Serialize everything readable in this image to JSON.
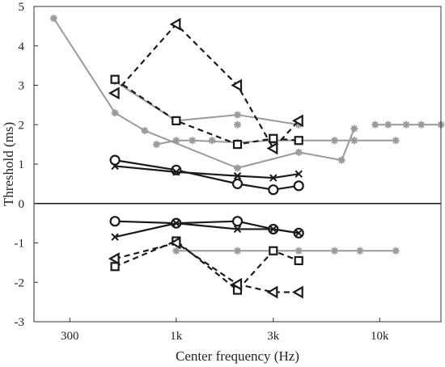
{
  "chart_data": {
    "type": "line",
    "xlabel": "Center frequency (Hz)",
    "ylabel": "Threshold (ms)",
    "x_scale": "log",
    "xlim": [
      200,
      20000
    ],
    "ylim": [
      -3,
      5
    ],
    "x_ticks": [
      {
        "value": 300,
        "label": "300"
      },
      {
        "value": 1000,
        "label": "1k"
      },
      {
        "value": 3000,
        "label": "3k"
      },
      {
        "value": 10000,
        "label": "10k"
      }
    ],
    "y_ticks": [
      -3,
      -2,
      -1,
      0,
      1,
      2,
      3,
      4,
      5
    ],
    "zero_line": true,
    "grid": false,
    "colors": {
      "black": "#1a1a1a",
      "gray": "#9a9a9a"
    },
    "series": [
      {
        "color": "#9a9a9a",
        "style": "solid",
        "marker": "star",
        "points": [
          [
            250,
            4.7
          ],
          [
            500,
            2.3
          ],
          [
            700,
            1.85
          ],
          [
            2000,
            0.9
          ],
          [
            4000,
            1.3
          ],
          [
            6500,
            1.1
          ],
          [
            7500,
            1.9
          ]
        ]
      },
      {
        "color": "#9a9a9a",
        "style": "solid",
        "marker": "star",
        "points": [
          [
            500,
            3.1
          ],
          [
            1000,
            2.1
          ],
          [
            2000,
            2.25
          ],
          [
            4000,
            2.0
          ]
        ]
      },
      {
        "color": "#9a9a9a",
        "style": "solid",
        "marker": "star",
        "points": [
          [
            800,
            1.5
          ],
          [
            1000,
            1.6
          ],
          [
            1200,
            1.6
          ],
          [
            2000,
            1.55
          ],
          [
            3000,
            1.6
          ],
          [
            4000,
            1.6
          ],
          [
            6000,
            1.6
          ],
          [
            7500,
            1.6
          ],
          [
            12000,
            1.6
          ]
        ]
      },
      {
        "color": "#9a9a9a",
        "style": "none",
        "marker": "star",
        "points": [
          [
            1500,
            1.6
          ],
          [
            2000,
            2.0
          ]
        ]
      },
      {
        "color": "#9a9a9a",
        "style": "solid",
        "marker": "star",
        "points": [
          [
            9500,
            2.0
          ],
          [
            11000,
            2.0
          ],
          [
            13500,
            2.0
          ],
          [
            16000,
            2.0
          ],
          [
            20000,
            2.0
          ]
        ]
      },
      {
        "color": "#9a9a9a",
        "style": "solid",
        "marker": "star",
        "points": [
          [
            1000,
            -1.2
          ],
          [
            2000,
            -1.2
          ],
          [
            3000,
            -1.2
          ],
          [
            4000,
            -1.2
          ],
          [
            6000,
            -1.2
          ],
          [
            8000,
            -1.2
          ],
          [
            12000,
            -1.2
          ]
        ]
      },
      {
        "color": "#1a1a1a",
        "style": "dashed",
        "marker": "square",
        "points": [
          [
            500,
            3.15
          ],
          [
            1000,
            2.1
          ],
          [
            2000,
            1.5
          ],
          [
            3000,
            1.65
          ],
          [
            4000,
            1.6
          ]
        ]
      },
      {
        "color": "#1a1a1a",
        "style": "dashed",
        "marker": "triangle-left",
        "points": [
          [
            500,
            2.8
          ],
          [
            1000,
            4.55
          ],
          [
            2000,
            3.0
          ],
          [
            3000,
            1.4
          ],
          [
            4000,
            2.1
          ]
        ]
      },
      {
        "color": "#1a1a1a",
        "style": "solid",
        "marker": "circle",
        "points": [
          [
            500,
            1.1
          ],
          [
            1000,
            0.85
          ],
          [
            2000,
            0.5
          ],
          [
            3000,
            0.35
          ],
          [
            4000,
            0.45
          ]
        ]
      },
      {
        "color": "#1a1a1a",
        "style": "solid",
        "marker": "x",
        "points": [
          [
            500,
            0.95
          ],
          [
            1000,
            0.8
          ],
          [
            2000,
            0.7
          ],
          [
            3000,
            0.65
          ],
          [
            4000,
            0.75
          ]
        ]
      },
      {
        "color": "#1a1a1a",
        "style": "solid",
        "marker": "circle",
        "points": [
          [
            500,
            -0.45
          ],
          [
            1000,
            -0.5
          ],
          [
            2000,
            -0.45
          ],
          [
            3000,
            -0.65
          ],
          [
            4000,
            -0.75
          ]
        ]
      },
      {
        "color": "#1a1a1a",
        "style": "solid",
        "marker": "x",
        "points": [
          [
            500,
            -0.85
          ],
          [
            1000,
            -0.5
          ],
          [
            2000,
            -0.65
          ],
          [
            3000,
            -0.65
          ],
          [
            4000,
            -0.75
          ]
        ]
      },
      {
        "color": "#1a1a1a",
        "style": "dashed",
        "marker": "square",
        "points": [
          [
            500,
            -1.6
          ],
          [
            1000,
            -0.95
          ],
          [
            2000,
            -2.2
          ],
          [
            3000,
            -1.2
          ],
          [
            4000,
            -1.45
          ]
        ]
      },
      {
        "color": "#1a1a1a",
        "style": "dashed",
        "marker": "triangle-left",
        "points": [
          [
            500,
            -1.4
          ],
          [
            1000,
            -1.0
          ],
          [
            2000,
            -2.05
          ],
          [
            3000,
            -2.25
          ],
          [
            4000,
            -2.25
          ]
        ]
      }
    ]
  }
}
